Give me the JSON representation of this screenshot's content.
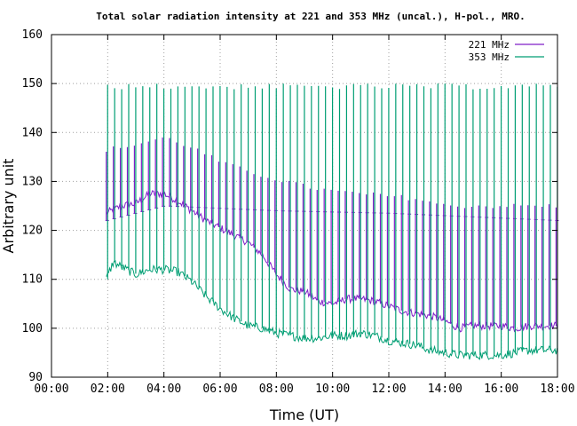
{
  "chart_data": {
    "type": "line",
    "title": "Total solar radiation intensity at 221 and 353 MHz (uncal.), H-pol., MRO.",
    "xlabel": "Time (UT)",
    "ylabel": "Arbitrary unit",
    "xlim": [
      0,
      18
    ],
    "ylim": [
      90,
      160
    ],
    "x_ticks": [
      "00:00",
      "02:00",
      "04:00",
      "06:00",
      "08:00",
      "10:00",
      "12:00",
      "14:00",
      "16:00",
      "18:00"
    ],
    "y_ticks": [
      "90",
      "100",
      "110",
      "120",
      "130",
      "140",
      "150",
      "160"
    ],
    "grid": true,
    "legend_position": "top-right",
    "data_start_hour": 1.95,
    "calibration_pulse_interval_hours": 0.25,
    "calibration_pulse_peak_353": 150,
    "series": [
      {
        "name": "221 MHz",
        "color": "#7f1fc7",
        "baseline": [
          [
            1.95,
            123.5
          ],
          [
            2.5,
            125
          ],
          [
            3.0,
            125.5
          ],
          [
            3.5,
            127.5
          ],
          [
            4.0,
            127.5
          ],
          [
            4.5,
            126
          ],
          [
            5.0,
            124
          ],
          [
            5.5,
            122
          ],
          [
            6.0,
            120.5
          ],
          [
            6.5,
            119
          ],
          [
            7.0,
            117.5
          ],
          [
            7.5,
            115
          ],
          [
            8.0,
            111
          ],
          [
            8.5,
            108
          ],
          [
            9.0,
            107.5
          ],
          [
            9.5,
            105.5
          ],
          [
            10.0,
            105
          ],
          [
            10.5,
            106
          ],
          [
            11.0,
            106
          ],
          [
            11.5,
            105.5
          ],
          [
            12.0,
            104.5
          ],
          [
            12.5,
            103.5
          ],
          [
            13.0,
            103
          ],
          [
            13.5,
            102.5
          ],
          [
            14.0,
            101.5
          ],
          [
            14.5,
            100
          ],
          [
            15.0,
            100.5
          ],
          [
            15.5,
            100.5
          ],
          [
            16.0,
            100.5
          ],
          [
            16.5,
            100
          ],
          [
            17.0,
            100.5
          ],
          [
            17.5,
            100.5
          ],
          [
            18.0,
            100.5
          ]
        ],
        "pulse_peaks": [
          [
            1.95,
            136.5
          ],
          [
            3.0,
            137.5
          ],
          [
            4.0,
            139
          ],
          [
            5.0,
            137
          ],
          [
            6.0,
            134
          ],
          [
            7.0,
            132
          ],
          [
            8.0,
            130.5
          ],
          [
            9.0,
            129
          ],
          [
            10.0,
            128
          ],
          [
            11.0,
            127.5
          ],
          [
            12.0,
            127
          ],
          [
            13.0,
            126.5
          ],
          [
            14.0,
            125
          ],
          [
            15.0,
            125
          ],
          [
            16.0,
            125
          ],
          [
            17.0,
            125
          ],
          [
            18.0,
            125
          ]
        ],
        "pulse_floor": [
          [
            1.95,
            122
          ],
          [
            4.0,
            125
          ],
          [
            8.0,
            124
          ],
          [
            12.0,
            123.5
          ],
          [
            18.0,
            122
          ]
        ]
      },
      {
        "name": "353 MHz",
        "color": "#009e73",
        "baseline": [
          [
            1.95,
            110
          ],
          [
            2.2,
            113.5
          ],
          [
            2.5,
            112.5
          ],
          [
            3.0,
            111
          ],
          [
            3.5,
            112
          ],
          [
            4.0,
            112
          ],
          [
            4.5,
            111.5
          ],
          [
            5.0,
            109.5
          ],
          [
            5.5,
            106.5
          ],
          [
            6.0,
            104
          ],
          [
            6.5,
            102
          ],
          [
            7.0,
            100.5
          ],
          [
            7.5,
            100
          ],
          [
            8.0,
            99
          ],
          [
            8.5,
            98.5
          ],
          [
            9.0,
            98
          ],
          [
            9.5,
            98
          ],
          [
            10.0,
            98.5
          ],
          [
            10.5,
            98.5
          ],
          [
            11.0,
            99
          ],
          [
            11.5,
            98.5
          ],
          [
            12.0,
            97.5
          ],
          [
            12.5,
            97
          ],
          [
            13.0,
            96.5
          ],
          [
            13.5,
            95.5
          ],
          [
            14.0,
            95
          ],
          [
            14.5,
            94.5
          ],
          [
            15.0,
            94.5
          ],
          [
            15.5,
            94.5
          ],
          [
            16.0,
            94.5
          ],
          [
            16.5,
            95
          ],
          [
            17.0,
            95.5
          ],
          [
            17.5,
            95.5
          ],
          [
            18.0,
            95.5
          ]
        ]
      }
    ]
  }
}
